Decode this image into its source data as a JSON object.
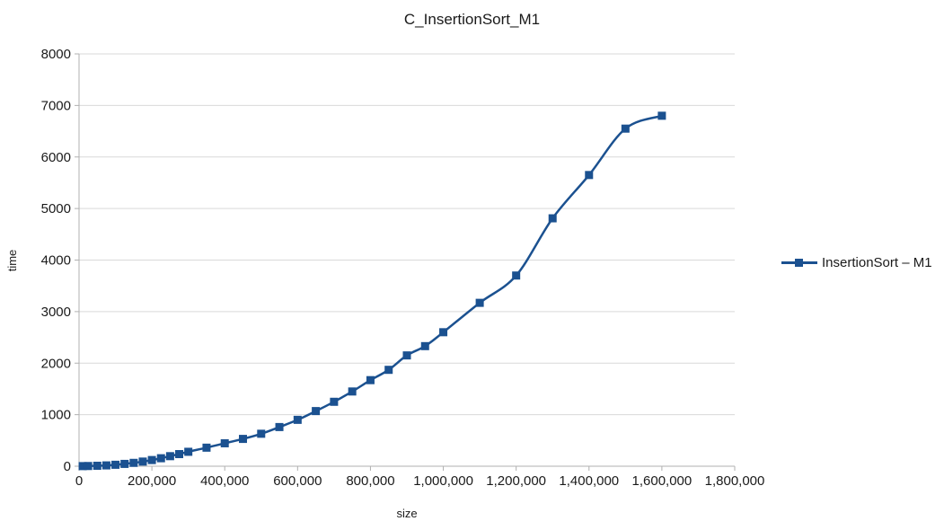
{
  "chart_data": {
    "type": "line",
    "title": "C_InsertionSort_M1",
    "xlabel": "size",
    "ylabel": "time",
    "xlim": [
      0,
      1800000
    ],
    "ylim": [
      0,
      8000
    ],
    "grid": "horizontal",
    "legend_position": "right",
    "x_ticks": {
      "values": [
        0,
        200000,
        400000,
        600000,
        800000,
        1000000,
        1200000,
        1400000,
        1600000,
        1800000
      ],
      "labels": [
        "0",
        "200,000",
        "400,000",
        "600,000",
        "800,000",
        "1,000,000",
        "1,200,000",
        "1,400,000",
        "1,600,000",
        "1,800,000"
      ]
    },
    "y_ticks": {
      "values": [
        0,
        1000,
        2000,
        3000,
        4000,
        5000,
        6000,
        7000,
        8000
      ],
      "labels": [
        "0",
        "1000",
        "2000",
        "3000",
        "4000",
        "5000",
        "6000",
        "7000",
        "8000"
      ]
    },
    "series": [
      {
        "name": "InsertionSort – M1",
        "color": "#1b5190",
        "marker": "square",
        "marker_size": 9,
        "line_style": "smooth",
        "points": [
          [
            10000,
            2
          ],
          [
            25000,
            4
          ],
          [
            50000,
            9
          ],
          [
            75000,
            16
          ],
          [
            100000,
            28
          ],
          [
            125000,
            45
          ],
          [
            150000,
            65
          ],
          [
            175000,
            90
          ],
          [
            200000,
            120
          ],
          [
            225000,
            155
          ],
          [
            250000,
            195
          ],
          [
            275000,
            235
          ],
          [
            300000,
            280
          ],
          [
            350000,
            360
          ],
          [
            400000,
            445
          ],
          [
            450000,
            530
          ],
          [
            500000,
            630
          ],
          [
            550000,
            760
          ],
          [
            600000,
            900
          ],
          [
            650000,
            1070
          ],
          [
            700000,
            1250
          ],
          [
            750000,
            1450
          ],
          [
            800000,
            1670
          ],
          [
            850000,
            1870
          ],
          [
            900000,
            2150
          ],
          [
            950000,
            2330
          ],
          [
            1000000,
            2600
          ],
          [
            1100000,
            3170
          ],
          [
            1200000,
            3700
          ],
          [
            1300000,
            4810
          ],
          [
            1400000,
            5650
          ],
          [
            1500000,
            6550
          ],
          [
            1600000,
            6800
          ]
        ]
      }
    ]
  },
  "colors": {
    "background": "#ffffff",
    "gridline": "#d9d9d9",
    "axis": "#b0b0b0",
    "text": "#1a1a1a"
  }
}
